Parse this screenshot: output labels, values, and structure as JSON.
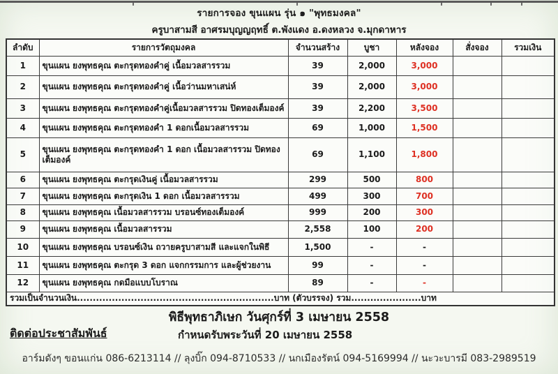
{
  "header": {
    "title": "รายการจอง ขุนแผน รุ่น ๑ \"พุทธมงคล\"",
    "subtitle": "ครูบาสามสี อาศรมบุญญฤทธิ์ ต.พังแดง อ.ดงหลวง จ.มุกดาหาร"
  },
  "table": {
    "headers": [
      "ลำดับ",
      "รายการวัตถุมงคล",
      "จำนวนสร้าง",
      "บูชา",
      "หลังจอง",
      "สั่งจอง",
      "รวมเงิน"
    ],
    "rows": [
      {
        "no": "1",
        "item": "ขุนแผน ยงพุทธคุณ ตะกรุดทองคำคู่ เนื้อมวลสารรวม",
        "made": "39",
        "price": "2,000",
        "after": "3,000",
        "after_red": true,
        "order": "",
        "total": ""
      },
      {
        "no": "2",
        "item": "ขุนแผน ยงพุทธคุณ ตะกรุดทองคำคู่ เนื้อว่านมหาเสน่ห์",
        "made": "39",
        "price": "2,000",
        "after": "3,000",
        "after_red": true,
        "order": "",
        "total": ""
      },
      {
        "no": "3",
        "item": "ขุนแผน ยงพุทธคุณ ตะกรุดทองคำคู่เนื้อมวลสารรวม ปิดทองเต็มองค์",
        "made": "39",
        "price": "2,200",
        "after": "3,500",
        "after_red": true,
        "order": "",
        "total": ""
      },
      {
        "no": "4",
        "item": "ขุนแผน ยงพุทธคุณ ตะกรุดทองคำ 1 ดอกเนื้อมวลสารรวม",
        "made": "69",
        "price": "1,000",
        "after": "1,500",
        "after_red": true,
        "order": "",
        "total": ""
      },
      {
        "no": "5",
        "item": "ขุนแผน ยงพุทธคุณ ตะกรุดทองคำ 1 ดอก เนื้อมวลสารรวม ปิดทองเต็มองค์",
        "made": "69",
        "price": "1,100",
        "after": "1,800",
        "after_red": true,
        "order": "",
        "total": ""
      },
      {
        "no": "6",
        "item": "ขุนแผน ยงพุทธคุณ ตะกรุดเงินคู่ เนื้อมวลสารรวม",
        "made": "299",
        "price": "500",
        "after": "800",
        "after_red": true,
        "order": "",
        "total": ""
      },
      {
        "no": "7",
        "item": "ขุนแผน ยงพุทธคุณ ตะกรุดเงิน 1 ดอก เนื้อมวลสารรวม",
        "made": "499",
        "price": "300",
        "after": "700",
        "after_red": true,
        "order": "",
        "total": ""
      },
      {
        "no": "8",
        "item": "ขุนแผน ยงพุทธคุณ เนื้อมวลสารรวม บรอนซ์ทองเต็มองค์",
        "made": "999",
        "price": "200",
        "after": "300",
        "after_red": true,
        "order": "",
        "total": ""
      },
      {
        "no": "9",
        "item": "ขุนแผน ยงพุทธคุณ เนื้อมวลสารรวม",
        "made": "2,558",
        "price": "100",
        "after": "200",
        "after_red": true,
        "order": "",
        "total": ""
      },
      {
        "no": "10",
        "item": "ขุนแผน ยงพุทธคุณ บรอนซ์เงิน ถวายครูบาสามสี และแจกในพิธี",
        "made": "1,500",
        "price": "-",
        "after": "-",
        "after_red": false,
        "order": "",
        "total": ""
      },
      {
        "no": "11",
        "item": "ขุนแผน ยงพุทธคุณ ตะกรุด 3 ดอก แจกกรรมการ และผู้ช่วยงาน",
        "made": "99",
        "price": "-",
        "after": "-",
        "after_red": false,
        "order": "",
        "total": ""
      },
      {
        "no": "12",
        "item": "ขุนแผน ยงพุทธคุณ กดมือแบบโบราณ",
        "made": "89",
        "price": "-",
        "after": "-",
        "after_red": true,
        "order": "",
        "total": ""
      }
    ],
    "footer_text": "รวมเป็นจำนวนเงิน..............................................................บาท (ตัวบรรจง)    รวม......................บาท"
  },
  "notes": {
    "ceremony": "พิธีพุทธาภิเษก วันศุกร์ที่ 3 เมษายน 2558",
    "contact_heading": "ติดต่อประชาสัมพันธ์",
    "receive": "กำหนดรับพระวันที่ 20 เมษายน 2558",
    "contacts": "อาร์มดังๆ ขอนแก่น 086-6213114 // ลุงบิ๊ก 094-8710533 //  นกเมืองรัตน์ 094-5169994 // นะวะบารมี 083-2989519"
  },
  "colors": {
    "accent_red": "#de3023",
    "text": "#1b1b1b",
    "border": "#3a3a3a",
    "background": "#f5f8f1"
  }
}
